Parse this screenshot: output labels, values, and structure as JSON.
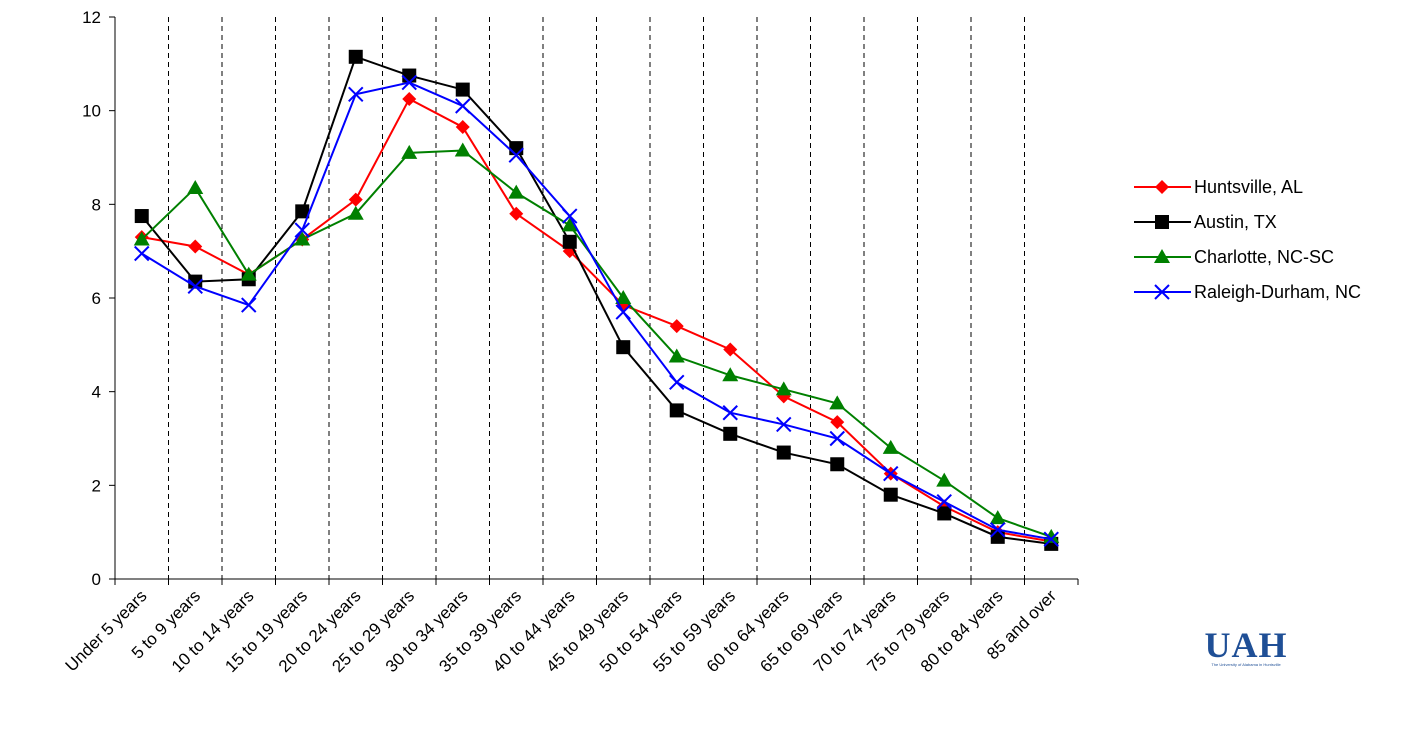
{
  "chart_data": {
    "type": "line",
    "categories": [
      "Under 5 years",
      "5 to 9 years",
      "10 to 14 years",
      "15 to 19 years",
      "20 to 24 years",
      "25 to 29 years",
      "30 to 34 years",
      "35 to 39 years",
      "40 to 44 years",
      "45 to 49 years",
      "50 to 54 years",
      "55 to 59 years",
      "60 to 64 years",
      "65 to 69 years",
      "70 to 74 years",
      "75 to 79 years",
      "80 to 84 years",
      "85 and over"
    ],
    "ylim": [
      0,
      12
    ],
    "yticks": [
      0,
      2,
      4,
      6,
      8,
      10,
      12
    ],
    "vertical_gridlines": "dashed",
    "legend_position": "right",
    "series": [
      {
        "name": "Huntsville, AL",
        "color": "#ff0000",
        "marker": "diamond",
        "values": [
          7.3,
          7.1,
          6.5,
          7.25,
          8.1,
          10.25,
          9.65,
          7.8,
          7.0,
          5.85,
          5.4,
          4.9,
          3.9,
          3.35,
          2.25,
          1.55,
          1.0,
          0.8
        ]
      },
      {
        "name": "Austin, TX",
        "color": "#000000",
        "marker": "square",
        "values": [
          7.75,
          6.35,
          6.4,
          7.85,
          11.15,
          10.75,
          10.45,
          9.2,
          7.2,
          4.95,
          3.6,
          3.1,
          2.7,
          2.45,
          1.8,
          1.4,
          0.9,
          0.75
        ]
      },
      {
        "name": "Charlotte, NC-SC",
        "color": "#008000",
        "marker": "triangle",
        "values": [
          7.25,
          8.35,
          6.5,
          7.25,
          7.8,
          9.1,
          9.15,
          8.25,
          7.55,
          6.0,
          4.75,
          4.35,
          4.05,
          3.75,
          2.8,
          2.1,
          1.3,
          0.9
        ]
      },
      {
        "name": "Raleigh-Durham, NC",
        "color": "#0000ff",
        "marker": "x",
        "values": [
          6.95,
          6.25,
          5.85,
          7.45,
          10.35,
          10.6,
          10.1,
          9.05,
          7.75,
          5.7,
          4.2,
          3.55,
          3.3,
          3.0,
          2.25,
          1.65,
          1.05,
          0.85
        ]
      }
    ]
  },
  "logo": {
    "text": "UAH",
    "subtext": "The University of Alabama in Huntsville"
  }
}
